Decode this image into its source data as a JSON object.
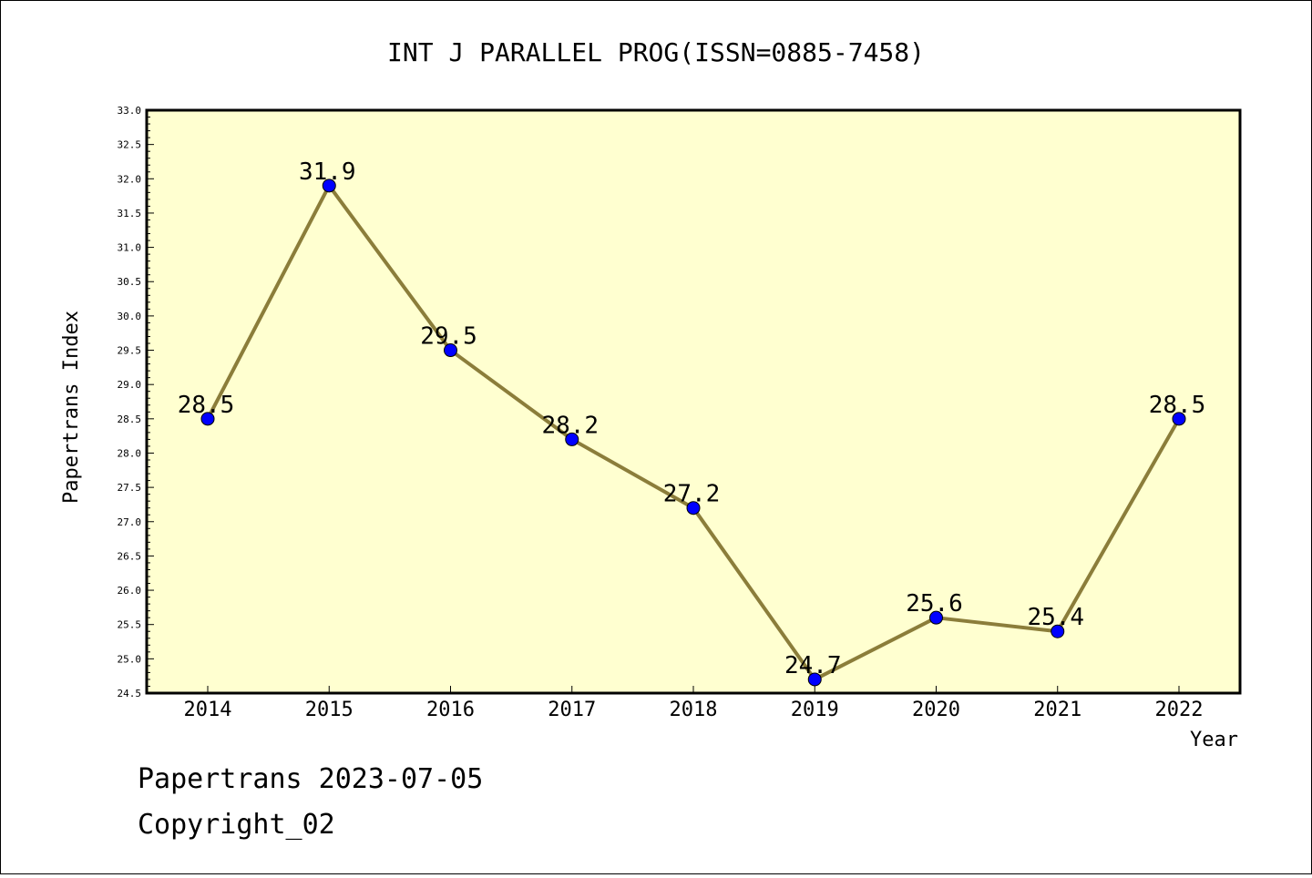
{
  "chart_data": {
    "type": "line",
    "title": "INT J PARALLEL PROG(ISSN=0885-7458)",
    "xlabel": "Year",
    "ylabel": "Papertrans Index",
    "categories": [
      "2014",
      "2015",
      "2016",
      "2017",
      "2018",
      "2019",
      "2020",
      "2021",
      "2022"
    ],
    "values": [
      28.5,
      31.9,
      29.5,
      28.2,
      27.2,
      24.7,
      25.6,
      25.4,
      28.5
    ],
    "data_labels": [
      "28.5",
      "31.9",
      "29.5",
      "28.2",
      "27.2",
      "24.7",
      "25.6",
      "25.4",
      "28.5"
    ],
    "ylim": [
      24.5,
      33.0
    ],
    "y_ticks": [
      "24.5",
      "25.0",
      "25.5",
      "26.0",
      "26.5",
      "27.0",
      "27.5",
      "28.0",
      "28.5",
      "29.0",
      "29.5",
      "30.0",
      "30.5",
      "31.0",
      "31.5",
      "32.0",
      "32.5",
      "33.0"
    ],
    "grid": false,
    "colors": {
      "plot_background": "#ffffd0",
      "line": "#8b7d3a",
      "marker": "#0000ff"
    }
  },
  "footer": {
    "line1": "Papertrans 2023-07-05",
    "line2": "Copyright_02"
  }
}
